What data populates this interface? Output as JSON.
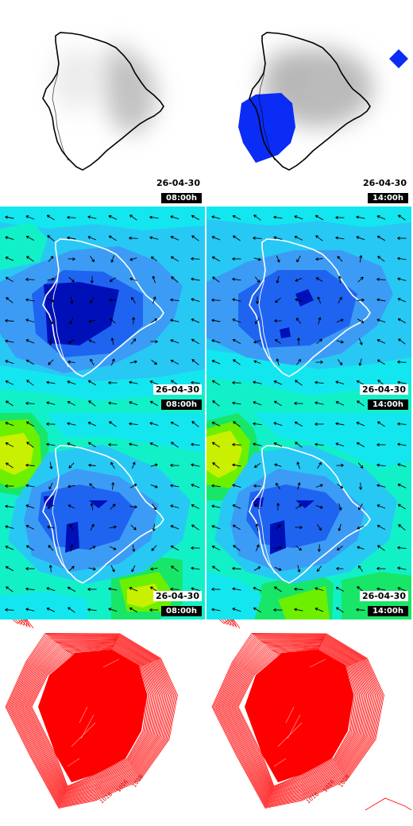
{
  "panels": [
    {
      "id": "r1c1",
      "row": 1,
      "col": 1,
      "kind": "cloud",
      "date": "26-04-30",
      "time": "08:00h"
    },
    {
      "id": "r1c2",
      "row": 1,
      "col": 2,
      "kind": "cloud-precip",
      "date": "26-04-30",
      "time": "14:00h"
    },
    {
      "id": "r2c1",
      "row": 2,
      "col": 1,
      "kind": "temperature-wind",
      "date": "26-04-30",
      "time": "08:00h"
    },
    {
      "id": "r2c2",
      "row": 2,
      "col": 2,
      "kind": "temperature-wind",
      "date": "26-04-30",
      "time": "14:00h"
    },
    {
      "id": "r3c1",
      "row": 3,
      "col": 1,
      "kind": "temperature-wind",
      "date": "26-04-30",
      "time": "08:00h"
    },
    {
      "id": "r3c2",
      "row": 3,
      "col": 2,
      "kind": "temperature-wind",
      "date": "26-04-30",
      "time": "14:00h"
    },
    {
      "id": "r4c1",
      "row": 4,
      "col": 1,
      "kind": "pressure-contours",
      "date": "",
      "time": ""
    },
    {
      "id": "r4c2",
      "row": 4,
      "col": 2,
      "kind": "pressure-contours",
      "date": "",
      "time": ""
    }
  ],
  "contour_labels": [
    "1016",
    "1018",
    "1016"
  ],
  "colors": {
    "cloud_gray": "#b4b4b4",
    "precip_blue": "#0a2cf5",
    "coast_line": "#000000",
    "coast_line_on_field": "#ffffff",
    "field_dark_blue": "#0010b8",
    "field_blue": "#1f64f0",
    "field_mid_blue": "#3c9cf5",
    "field_light_blue": "#28c8f5",
    "field_cyan": "#14e6f0",
    "field_aqua": "#12f0c8",
    "field_green": "#18e668",
    "field_lime": "#6cf000",
    "field_yellow": "#c8f000",
    "wind_arrow": "#000000",
    "contour_red": "#ff0000"
  }
}
